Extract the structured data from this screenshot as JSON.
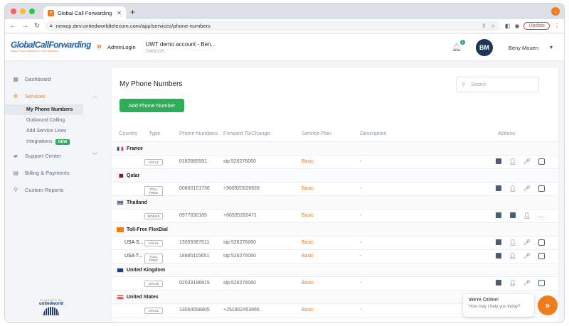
{
  "browser": {
    "tab_title": "Global Call Forwarding",
    "url": "newcp.dev.unitedworldtelecom.com/app/services/phone-numbers",
    "update_label": "Update",
    "colors": {
      "close": "#ff5f57",
      "min": "#febc2e",
      "max": "#28c840"
    }
  },
  "header": {
    "logo_text_1": "Global",
    "logo_text_2": "Call",
    "logo_text_3": "Forwarding",
    "logo_tagline": "Reach Phone Numbers for Your Business",
    "admin_login": "AdminLogin",
    "account_name": "UWT demo account - Ben...",
    "account_id": "G489195",
    "notification_count": "1",
    "avatar_initials": "BM",
    "user_name": "Beny Mouen"
  },
  "sidebar": {
    "items": [
      {
        "label": "Dashboard",
        "icon": "dashboard-icon"
      },
      {
        "label": "Services",
        "icon": "gear-icon"
      },
      {
        "label": "Support Center",
        "icon": "chat-icon"
      },
      {
        "label": "Billing & Payments",
        "icon": "billing-icon"
      },
      {
        "label": "Custom Reports",
        "icon": "search-icon"
      }
    ],
    "services_sub": [
      {
        "label": "My Phone Numbers"
      },
      {
        "label": "Outbound Calling"
      },
      {
        "label": "Add Service Lines"
      },
      {
        "label": "Integrations"
      }
    ],
    "new_badge": "NEW",
    "powered_by": "POWERED BY",
    "powered_brand": "unitedworld"
  },
  "main": {
    "title": "My Phone Numbers",
    "add_button": "Add Phone Number",
    "search_placeholder": "Search",
    "columns": [
      "Country",
      "Type",
      "Phone Numbers",
      "Forward To/Change",
      "Service Plan",
      "Description",
      "Actions"
    ],
    "groups": [
      {
        "name": "France",
        "rows": [
          {
            "label": "",
            "type": "LOCAL",
            "number": "0182880581",
            "forward": "sip:526276060",
            "plan": "Basic",
            "desc": "-"
          }
        ]
      },
      {
        "name": "Qatar",
        "rows": [
          {
            "label": "",
            "type": "TOLL FREE",
            "number": "00800101736",
            "forward": "+96692002892​8",
            "plan": "Basic",
            "desc": "-"
          }
        ]
      },
      {
        "name": "Thailand",
        "rows": [
          {
            "label": "",
            "type": "MOBILE",
            "number": "0977830185",
            "forward": "+66935282471",
            "plan": "Basic",
            "desc": "-"
          }
        ]
      },
      {
        "name": "Toll-Free FlexDial",
        "rows": [
          {
            "label": "USA S...",
            "type": "LOCAL",
            "number": "13059387511",
            "forward": "sip:526276060",
            "plan": "Basic",
            "desc": "-"
          },
          {
            "label": "USA T...",
            "type": "TOLL FREE",
            "number": "18885115651",
            "forward": "sip:526276060",
            "plan": "Basic",
            "desc": "-"
          }
        ]
      },
      {
        "name": "United Kingdom",
        "rows": [
          {
            "label": "",
            "type": "LOCAL",
            "number": "02033186815",
            "forward": "sip:526276060",
            "plan": "Basic",
            "desc": "-"
          }
        ]
      },
      {
        "name": "United States",
        "rows": [
          {
            "label": "",
            "type": "LOCAL",
            "number": "13054558805",
            "forward": "+251902453865",
            "plan": "Basic",
            "desc": "-"
          }
        ]
      }
    ]
  },
  "chat": {
    "line1": "We're Online!",
    "line2": "How may I help you today?"
  }
}
